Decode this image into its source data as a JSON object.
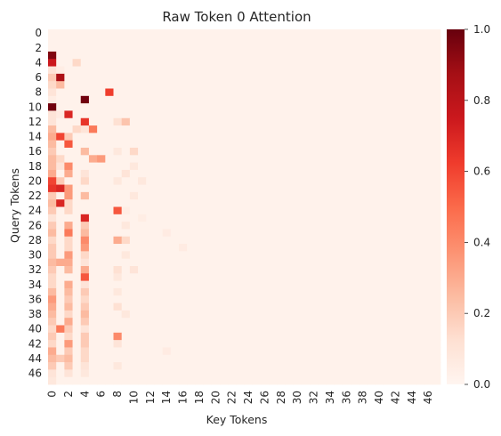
{
  "chart_data": {
    "type": "heatmap",
    "title": "Raw Token 0 Attention",
    "xlabel": "Key Tokens",
    "ylabel": "Query Tokens",
    "n_rows": 48,
    "n_cols": 48,
    "x_tick_labels": [
      "0",
      "2",
      "4",
      "6",
      "8",
      "10",
      "12",
      "14",
      "16",
      "18",
      "20",
      "22",
      "24",
      "26",
      "28",
      "30",
      "32",
      "34",
      "36",
      "38",
      "40",
      "42",
      "44",
      "46"
    ],
    "y_tick_labels": [
      "0",
      "2",
      "4",
      "6",
      "8",
      "10",
      "12",
      "14",
      "16",
      "18",
      "20",
      "22",
      "24",
      "26",
      "28",
      "30",
      "32",
      "34",
      "36",
      "38",
      "40",
      "42",
      "44",
      "46"
    ],
    "colorbar": {
      "colormap": "Reds",
      "vmin": 0.0,
      "vmax": 1.0,
      "tick_labels": [
        "0.0",
        "0.2",
        "0.4",
        "0.6",
        "0.8",
        "1.0"
      ],
      "tick_values": [
        0.0,
        0.2,
        0.4,
        0.6,
        0.8,
        1.0
      ]
    },
    "background_value": 0.02,
    "values_note_cells": [
      [
        3,
        0,
        0.95
      ],
      [
        4,
        0,
        0.75
      ],
      [
        4,
        3,
        0.15
      ],
      [
        5,
        0,
        0.1
      ],
      [
        5,
        1,
        0.05
      ],
      [
        6,
        0,
        0.2
      ],
      [
        6,
        1,
        0.85
      ],
      [
        7,
        0,
        0.15
      ],
      [
        7,
        1,
        0.25
      ],
      [
        8,
        0,
        0.1
      ],
      [
        8,
        7,
        0.62
      ],
      [
        9,
        0,
        0.05
      ],
      [
        9,
        4,
        0.98
      ],
      [
        10,
        0,
        0.98
      ],
      [
        11,
        0,
        0.1
      ],
      [
        11,
        1,
        0.06
      ],
      [
        11,
        2,
        0.7
      ],
      [
        12,
        0,
        0.1
      ],
      [
        12,
        4,
        0.65
      ],
      [
        12,
        8,
        0.12
      ],
      [
        12,
        9,
        0.22
      ],
      [
        13,
        0,
        0.25
      ],
      [
        13,
        3,
        0.15
      ],
      [
        13,
        4,
        0.1
      ],
      [
        13,
        5,
        0.45
      ],
      [
        14,
        0,
        0.3
      ],
      [
        14,
        1,
        0.6
      ],
      [
        14,
        2,
        0.2
      ],
      [
        15,
        0,
        0.25
      ],
      [
        15,
        2,
        0.55
      ],
      [
        16,
        0,
        0.2
      ],
      [
        16,
        4,
        0.25
      ],
      [
        16,
        8,
        0.08
      ],
      [
        16,
        10,
        0.15
      ],
      [
        17,
        0,
        0.25
      ],
      [
        17,
        1,
        0.15
      ],
      [
        17,
        5,
        0.3
      ],
      [
        17,
        6,
        0.35
      ],
      [
        18,
        0,
        0.25
      ],
      [
        18,
        1,
        0.1
      ],
      [
        18,
        2,
        0.4
      ],
      [
        18,
        10,
        0.08
      ],
      [
        19,
        0,
        0.3
      ],
      [
        19,
        2,
        0.3
      ],
      [
        19,
        4,
        0.1
      ],
      [
        19,
        9,
        0.1
      ],
      [
        20,
        0,
        0.6
      ],
      [
        20,
        1,
        0.2
      ],
      [
        20,
        4,
        0.15
      ],
      [
        20,
        8,
        0.08
      ],
      [
        20,
        11,
        0.08
      ],
      [
        21,
        0,
        0.65
      ],
      [
        21,
        1,
        0.7
      ],
      [
        21,
        2,
        0.35
      ],
      [
        22,
        0,
        0.2
      ],
      [
        22,
        2,
        0.35
      ],
      [
        22,
        4,
        0.25
      ],
      [
        22,
        10,
        0.08
      ],
      [
        23,
        0,
        0.25
      ],
      [
        23,
        1,
        0.7
      ],
      [
        23,
        2,
        0.15
      ],
      [
        24,
        0,
        0.2
      ],
      [
        24,
        2,
        0.15
      ],
      [
        24,
        8,
        0.55
      ],
      [
        24,
        9,
        0.05
      ],
      [
        25,
        0,
        0.1
      ],
      [
        25,
        4,
        0.7
      ],
      [
        25,
        11,
        0.05
      ],
      [
        26,
        0,
        0.2
      ],
      [
        26,
        2,
        0.3
      ],
      [
        26,
        4,
        0.2
      ],
      [
        26,
        9,
        0.08
      ],
      [
        27,
        0,
        0.25
      ],
      [
        27,
        2,
        0.45
      ],
      [
        27,
        4,
        0.25
      ],
      [
        27,
        14,
        0.06
      ],
      [
        28,
        0,
        0.15
      ],
      [
        28,
        2,
        0.15
      ],
      [
        28,
        4,
        0.4
      ],
      [
        28,
        8,
        0.3
      ],
      [
        28,
        9,
        0.15
      ],
      [
        29,
        0,
        0.2
      ],
      [
        29,
        2,
        0.15
      ],
      [
        29,
        4,
        0.35
      ],
      [
        29,
        16,
        0.06
      ],
      [
        30,
        0,
        0.2
      ],
      [
        30,
        2,
        0.35
      ],
      [
        30,
        4,
        0.15
      ],
      [
        30,
        9,
        0.08
      ],
      [
        31,
        0,
        0.25
      ],
      [
        31,
        1,
        0.3
      ],
      [
        31,
        2,
        0.3
      ],
      [
        31,
        4,
        0.1
      ],
      [
        32,
        0,
        0.2
      ],
      [
        32,
        2,
        0.25
      ],
      [
        32,
        4,
        0.3
      ],
      [
        32,
        8,
        0.12
      ],
      [
        32,
        10,
        0.1
      ],
      [
        33,
        0,
        0.15
      ],
      [
        33,
        4,
        0.55
      ],
      [
        33,
        8,
        0.08
      ],
      [
        34,
        0,
        0.15
      ],
      [
        34,
        2,
        0.3
      ],
      [
        34,
        4,
        0.1
      ],
      [
        35,
        0,
        0.25
      ],
      [
        35,
        2,
        0.25
      ],
      [
        35,
        4,
        0.2
      ],
      [
        35,
        8,
        0.08
      ],
      [
        36,
        0,
        0.35
      ],
      [
        36,
        2,
        0.2
      ],
      [
        36,
        4,
        0.15
      ],
      [
        37,
        0,
        0.3
      ],
      [
        37,
        2,
        0.25
      ],
      [
        37,
        4,
        0.2
      ],
      [
        37,
        8,
        0.12
      ],
      [
        38,
        0,
        0.25
      ],
      [
        38,
        2,
        0.15
      ],
      [
        38,
        4,
        0.25
      ],
      [
        38,
        9,
        0.08
      ],
      [
        39,
        0,
        0.2
      ],
      [
        39,
        2,
        0.3
      ],
      [
        39,
        4,
        0.2
      ],
      [
        40,
        0,
        0.15
      ],
      [
        40,
        1,
        0.45
      ],
      [
        40,
        2,
        0.2
      ],
      [
        40,
        4,
        0.1
      ],
      [
        41,
        0,
        0.2
      ],
      [
        41,
        2,
        0.15
      ],
      [
        41,
        4,
        0.2
      ],
      [
        41,
        8,
        0.4
      ],
      [
        42,
        0,
        0.15
      ],
      [
        42,
        2,
        0.35
      ],
      [
        42,
        4,
        0.2
      ],
      [
        42,
        8,
        0.1
      ],
      [
        43,
        0,
        0.3
      ],
      [
        43,
        2,
        0.2
      ],
      [
        43,
        4,
        0.15
      ],
      [
        43,
        14,
        0.06
      ],
      [
        44,
        0,
        0.25
      ],
      [
        44,
        1,
        0.2
      ],
      [
        44,
        2,
        0.25
      ],
      [
        44,
        4,
        0.15
      ],
      [
        45,
        0,
        0.2
      ],
      [
        45,
        2,
        0.2
      ],
      [
        45,
        4,
        0.1
      ],
      [
        45,
        8,
        0.08
      ],
      [
        46,
        0,
        0.1
      ],
      [
        46,
        2,
        0.1
      ],
      [
        46,
        4,
        0.08
      ],
      [
        47,
        0,
        0.08
      ]
    ]
  }
}
